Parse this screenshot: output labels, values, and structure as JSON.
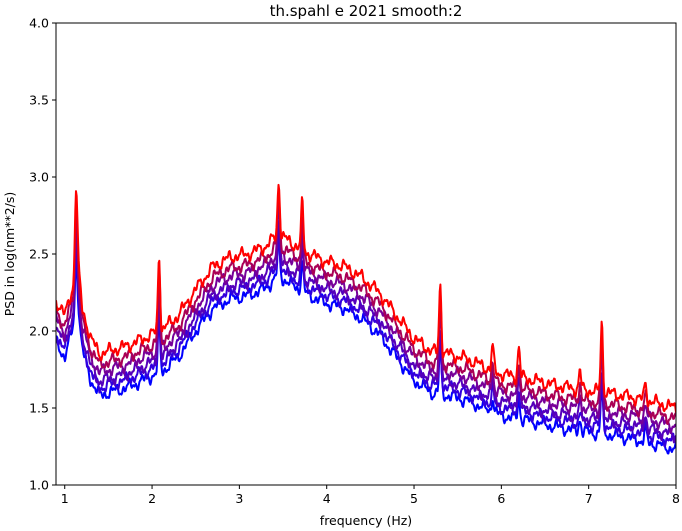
{
  "chart_data": {
    "type": "line",
    "title": "th.spahl e 2021 smooth:2",
    "xlabel": "frequency (Hz)",
    "ylabel": "PSD in log(nm**2/s)",
    "xlim": [
      0.9,
      8.0
    ],
    "ylim": [
      1.0,
      4.0
    ],
    "xticks": [
      1,
      2,
      3,
      4,
      5,
      6,
      7,
      8
    ],
    "xtick_labels": [
      "1",
      "2",
      "3",
      "4",
      "5",
      "6",
      "7",
      "8"
    ],
    "yticks": [
      1.0,
      1.5,
      2.0,
      2.5,
      3.0,
      3.5,
      4.0
    ],
    "ytick_labels": [
      "1.0",
      "1.5",
      "2.0",
      "2.5",
      "3.0",
      "3.5",
      "4.0"
    ],
    "grid": false,
    "legend": "none",
    "series": [
      {
        "color": "#0000ff",
        "offset": -0.12
      },
      {
        "color": "#3300dd",
        "offset": -0.07
      },
      {
        "color": "#5500bb",
        "offset": -0.03
      },
      {
        "color": "#770099",
        "offset": 0.03
      },
      {
        "color": "#aa0055",
        "offset": 0.08
      },
      {
        "color": "#ff0000",
        "offset": 0.15
      }
    ],
    "base_curve": {
      "x": [
        0.9,
        1.0,
        1.1,
        1.15,
        1.2,
        1.3,
        1.4,
        1.5,
        1.7,
        1.9,
        2.0,
        2.1,
        2.3,
        2.5,
        2.7,
        2.9,
        3.1,
        3.3,
        3.45,
        3.6,
        3.8,
        4.0,
        4.2,
        4.4,
        4.6,
        4.8,
        5.0,
        5.2,
        5.4,
        5.6,
        5.8,
        6.0,
        6.3,
        6.6,
        6.9,
        7.2,
        7.5,
        7.8,
        8.0
      ],
      "y": [
        2.05,
        1.95,
        2.15,
        2.3,
        2.0,
        1.8,
        1.7,
        1.72,
        1.75,
        1.8,
        1.83,
        1.85,
        1.95,
        2.12,
        2.27,
        2.33,
        2.35,
        2.4,
        2.48,
        2.42,
        2.35,
        2.3,
        2.27,
        2.2,
        2.1,
        1.95,
        1.8,
        1.72,
        1.7,
        1.67,
        1.62,
        1.57,
        1.54,
        1.5,
        1.47,
        1.45,
        1.42,
        1.38,
        1.35
      ]
    },
    "spikes": [
      {
        "x": 1.13,
        "height": 0.55
      },
      {
        "x": 2.08,
        "height": 0.5
      },
      {
        "x": 3.45,
        "height": 0.35
      },
      {
        "x": 3.72,
        "height": 0.3
      },
      {
        "x": 5.3,
        "height": 0.45
      },
      {
        "x": 5.9,
        "height": 0.15
      },
      {
        "x": 6.2,
        "height": 0.2
      },
      {
        "x": 6.9,
        "height": 0.12
      },
      {
        "x": 7.15,
        "height": 0.45
      },
      {
        "x": 7.65,
        "height": 0.12
      }
    ]
  }
}
